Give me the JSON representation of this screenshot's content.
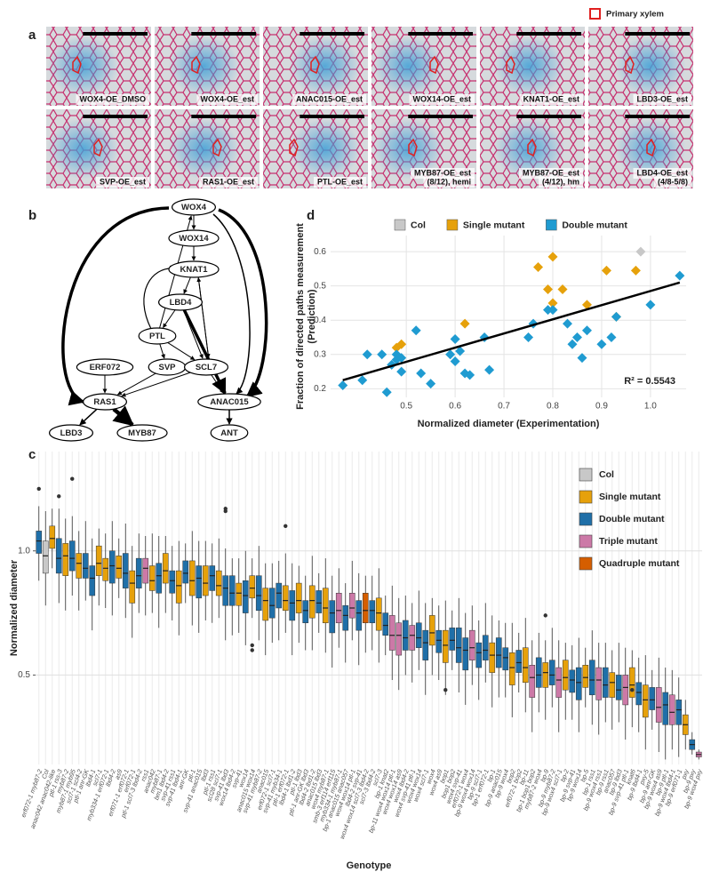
{
  "panel_a": {
    "label": "a",
    "legend": "Primary xylem",
    "images": [
      [
        "WOX4-OE_DMSO"
      ],
      [
        "WOX4-OE_est"
      ],
      [
        "ANAC015-OE_est"
      ],
      [
        "WOX14-OE_est"
      ],
      [
        "KNAT1-OE_est"
      ],
      [
        "LBD3-OE_est"
      ],
      [
        "SVP-OE_est"
      ],
      [
        "RAS1-OE_est"
      ],
      [
        "PTL-OE_est"
      ],
      [
        "MYB87-OE_est",
        "(8/12), hemi"
      ],
      [
        "MYB87-OE_est",
        "(4/12), hm"
      ],
      [
        "LBD4-OE_est",
        "(4/8-5/8)"
      ]
    ]
  },
  "network": {
    "label": "b",
    "nodes": [
      "WOX4",
      "WOX14",
      "KNAT1",
      "LBD4",
      "PTL",
      "SVP",
      "SCL7",
      "ERF072",
      "RAS1",
      "ANAC015",
      "LBD3",
      "MYB87",
      "ANT"
    ]
  },
  "chart_data": [
    {
      "type": "scatter",
      "panel": "d",
      "xlabel": "Normalized diameter (Experimentation)",
      "ylabel": [
        "Fraction of directed paths measurement",
        "(Prediction)"
      ],
      "xlim": [
        0.345,
        1.073
      ],
      "ylim": [
        0.175,
        0.647
      ],
      "xticks": [
        0.5,
        0.6,
        0.7,
        0.8,
        0.9,
        {
          "value": 1,
          "label": "1.0"
        }
      ],
      "yticks": [
        0.2,
        0.3,
        0.4,
        0.5,
        0.6
      ],
      "grid": true,
      "legend": "top",
      "series": [
        {
          "name": "Col",
          "color": "#c8c8c8",
          "x": [
            0.98
          ],
          "values": [
            0.6
          ]
        },
        {
          "name": "Single mutant",
          "color": "#e6a10b",
          "x": [
            0.77,
            0.8,
            0.91,
            0.97,
            0.79,
            0.82,
            0.8,
            0.87,
            0.93,
            0.62,
            0.49,
            0.48
          ],
          "values": [
            0.555,
            0.585,
            0.545,
            0.545,
            0.49,
            0.49,
            0.45,
            0.445,
            0.41,
            0.39,
            0.33,
            0.32
          ]
        },
        {
          "name": "Double mutant",
          "color": "#1f9bd1",
          "x": [
            0.37,
            0.41,
            0.42,
            0.45,
            0.46,
            0.47,
            0.48,
            0.48,
            0.49,
            0.49,
            0.52,
            0.53,
            0.55,
            0.59,
            0.6,
            0.6,
            0.61,
            0.62,
            0.63,
            0.66,
            0.67,
            0.75,
            0.76,
            0.79,
            0.8,
            0.83,
            0.84,
            0.85,
            0.86,
            0.87,
            0.9,
            0.92,
            0.93,
            1.0,
            1.06
          ],
          "values": [
            0.21,
            0.225,
            0.3,
            0.3,
            0.19,
            0.27,
            0.3,
            0.285,
            0.25,
            0.29,
            0.37,
            0.245,
            0.215,
            0.3,
            0.345,
            0.28,
            0.31,
            0.245,
            0.24,
            0.35,
            0.255,
            0.35,
            0.39,
            0.43,
            0.43,
            0.39,
            0.33,
            0.35,
            0.29,
            0.37,
            0.33,
            0.35,
            0.41,
            0.445,
            0.53
          ]
        }
      ],
      "fit": {
        "x": [
          0.37,
          1.06
        ],
        "y": [
          0.225,
          0.51
        ]
      },
      "annotation": "R² = 0.5543"
    },
    {
      "type": "box",
      "panel": "c",
      "xlabel": "Genotype",
      "ylabel": "Normalized diameter",
      "ylim": [
        0.14,
        1.4
      ],
      "yticks": [
        0.5,
        {
          "value": 1,
          "label": "1.0"
        }
      ],
      "grid": true,
      "legend_position": "top-right",
      "legend": [
        {
          "name": "Col",
          "color": "#c8c8c8"
        },
        {
          "name": "Single mutant",
          "color": "#e6a10b"
        },
        {
          "name": "Double mutant",
          "color": "#1f6fa8"
        },
        {
          "name": "Triple mutant",
          "color": "#cc79a7"
        },
        {
          "name": "Quadruple mutant",
          "color": "#d55e00"
        }
      ],
      "categories": [
        "erf072-1 myb87-2",
        "Col",
        "anac042 anac042-like",
        "ptl-1 rss-3",
        "myb87-2",
        "myb87-1 myb95",
        "scl7-1 scl4-2",
        "ptl-1 anr-GK",
        "lbd4-1",
        "scl7-1",
        "myb334-1 erf072-1",
        "lbd4-2",
        "as9",
        "erf071-1 erf072-1",
        "erf072-1",
        "ptl-1 scl7-3 lbd4-2",
        "rss1",
        "anac042",
        "myb87-1",
        "bm1 lbd4-2",
        "svp-41 rss1",
        "svp-41 lbd4-1",
        "anr-GK",
        "ptl-1",
        "svp-41 anac015",
        "lbd3",
        "ptl-1 rss1",
        "scl28 scl7-1",
        "svp-41 lbd3",
        "wox14 lbd4-2",
        "svp-41",
        "wox14",
        "anac015 wox14",
        "svp-41 myb87-2",
        "anac015",
        "erf072-1 scl7-1",
        "svp-41 myb34-1",
        "ptl-1 erf072-1",
        "lbd4-1 lbd1-2",
        "ptl-1 lbd3",
        "ptl-1 anr-GK lbd3",
        "lbd4-2 lbd1-2",
        "anac015 lbd3",
        "wox4 myb87-1",
        "smb-3 erf114 erf115",
        "myb334-1 myb87-1",
        "bp-1 anac015 anac057",
        "wox4 wox14 ptl-1",
        "lbd4-2 svp-41",
        "wox4 wox14 scl7-3 lbd4-2",
        "scl7-3 lbd4-2",
        "scl7-3",
        "bp-1 knat2",
        "bp-11 wox4 wox14 ptl-1",
        "wox4 wox14 as9",
        "wox4 lbd4-2",
        "wox4 svp-41 ptl-1",
        "wox4 wox14",
        "wox4 scl7-1",
        "wox4",
        "wox4 as9",
        "bop1",
        "bop1 bop2",
        "wox4 svp-41",
        "erf072-1 wox4",
        "bp-9 wox4 wox14",
        "bp-9 scl7-1",
        "bp-1 erf072-1",
        "bp-1",
        "bp-9 anac015",
        "bp-9 wox4",
        "bop2",
        "erf072-1 bop2",
        "bp-11",
        "bp-1 bop1 bop2",
        "myb87-2 wox4",
        "bp-9",
        "bp-9 myb87-2",
        "bp-9 wox4 scl7-1",
        "bp-2",
        "bp-9 svp-41",
        "bp-9 wox14",
        "bp-5",
        "bp-1 rss1",
        "bp-9 wox4 rss1",
        "bp-9 rss1",
        "anac057",
        "bp-9 lbd3",
        "bp-9 svp-41 ptl-1",
        "knat6",
        "bp-9 lbd4-1",
        "pxy-5",
        "bp-9 anr-GK",
        "bp-9 wox4 as9",
        "bp-9 ptl-1",
        "bp-9 wox4 lbd4-1",
        "bp-9 erf071-1",
        "pxy",
        "bp-9 pxy",
        "bp-9 wox4 pxy"
      ],
      "colors": [
        "#1f6fa8",
        "#c8c8c8",
        "#e6a10b",
        "#1f6fa8",
        "#e6a10b",
        "#1f6fa8",
        "#e6a10b",
        "#1f6fa8",
        "#1f6fa8",
        "#e6a10b",
        "#e6a10b",
        "#1f6fa8",
        "#e6a10b",
        "#1f6fa8",
        "#e6a10b",
        "#1f6fa8",
        "#cc79a7",
        "#e6a10b",
        "#1f6fa8",
        "#e6a10b",
        "#1f6fa8",
        "#e6a10b",
        "#1f6fa8",
        "#e6a10b",
        "#1f6fa8",
        "#e6a10b",
        "#1f6fa8",
        "#e6a10b",
        "#1f6fa8",
        "#1f6fa8",
        "#e6a10b",
        "#1f6fa8",
        "#e6a10b",
        "#1f6fa8",
        "#e6a10b",
        "#1f6fa8",
        "#1f6fa8",
        "#e6a10b",
        "#1f6fa8",
        "#e6a10b",
        "#1f6fa8",
        "#e6a10b",
        "#1f6fa8",
        "#e6a10b",
        "#1f6fa8",
        "#cc79a7",
        "#1f6fa8",
        "#cc79a7",
        "#1f6fa8",
        "#d55e00",
        "#1f6fa8",
        "#e6a10b",
        "#1f6fa8",
        "#cc79a7",
        "#cc79a7",
        "#1f6fa8",
        "#cc79a7",
        "#1f6fa8",
        "#1f6fa8",
        "#e6a10b",
        "#1f6fa8",
        "#e6a10b",
        "#1f6fa8",
        "#1f6fa8",
        "#1f6fa8",
        "#cc79a7",
        "#1f6fa8",
        "#1f6fa8",
        "#e6a10b",
        "#1f6fa8",
        "#1f6fa8",
        "#e6a10b",
        "#1f6fa8",
        "#e6a10b",
        "#cc79a7",
        "#1f6fa8",
        "#e6a10b",
        "#1f6fa8",
        "#cc79a7",
        "#e6a10b",
        "#1f6fa8",
        "#1f6fa8",
        "#e6a10b",
        "#1f6fa8",
        "#cc79a7",
        "#1f6fa8",
        "#e6a10b",
        "#1f6fa8",
        "#cc79a7",
        "#e6a10b",
        "#1f6fa8",
        "#e6a10b",
        "#1f6fa8",
        "#cc79a7",
        "#1f6fa8",
        "#cc79a7",
        "#1f6fa8",
        "#e6a10b",
        "#1f6fa8",
        "#cc79a7"
      ],
      "min": [
        0.88,
        0.78,
        0.93,
        0.79,
        0.76,
        0.82,
        0.76,
        0.8,
        0.68,
        0.78,
        0.77,
        0.74,
        0.81,
        0.73,
        0.65,
        0.75,
        0.74,
        0.75,
        0.69,
        0.75,
        0.72,
        0.66,
        0.79,
        0.7,
        0.67,
        0.72,
        0.71,
        0.73,
        0.64,
        0.66,
        0.67,
        0.62,
        0.73,
        0.64,
        0.58,
        0.63,
        0.64,
        0.67,
        0.58,
        0.63,
        0.6,
        0.6,
        0.67,
        0.59,
        0.53,
        0.61,
        0.55,
        0.64,
        0.54,
        0.59,
        0.6,
        0.55,
        0.58,
        0.48,
        0.44,
        0.5,
        0.47,
        0.52,
        0.42,
        0.5,
        0.48,
        0.42,
        0.52,
        0.43,
        0.38,
        0.46,
        0.4,
        0.47,
        0.37,
        0.41,
        0.41,
        0.33,
        0.43,
        0.35,
        0.27,
        0.35,
        0.32,
        0.37,
        0.27,
        0.32,
        0.32,
        0.27,
        0.37,
        0.3,
        0.26,
        0.31,
        0.28,
        0.31,
        0.24,
        0.29,
        0.27,
        0.2,
        0.28,
        0.19,
        0.16,
        0.2,
        0.17,
        0.2,
        0.18,
        0.16
      ],
      "q1": [
        0.99,
        0.91,
        1.01,
        0.91,
        0.9,
        0.92,
        0.89,
        0.89,
        0.82,
        0.9,
        0.88,
        0.87,
        0.89,
        0.85,
        0.79,
        0.85,
        0.87,
        0.84,
        0.83,
        0.87,
        0.83,
        0.79,
        0.87,
        0.82,
        0.81,
        0.82,
        0.84,
        0.82,
        0.78,
        0.78,
        0.78,
        0.75,
        0.81,
        0.76,
        0.72,
        0.73,
        0.77,
        0.76,
        0.72,
        0.75,
        0.71,
        0.73,
        0.75,
        0.71,
        0.67,
        0.71,
        0.68,
        0.73,
        0.68,
        0.71,
        0.71,
        0.68,
        0.66,
        0.6,
        0.58,
        0.6,
        0.6,
        0.61,
        0.56,
        0.62,
        0.59,
        0.55,
        0.6,
        0.55,
        0.52,
        0.56,
        0.53,
        0.56,
        0.51,
        0.53,
        0.52,
        0.46,
        0.51,
        0.47,
        0.41,
        0.45,
        0.45,
        0.46,
        0.41,
        0.44,
        0.43,
        0.4,
        0.45,
        0.42,
        0.4,
        0.41,
        0.41,
        0.4,
        0.38,
        0.41,
        0.38,
        0.33,
        0.36,
        0.31,
        0.3,
        0.3,
        0.3,
        0.26,
        0.2,
        0.17
      ],
      "median": [
        1.04,
        0.98,
        1.05,
        0.97,
        0.98,
        0.97,
        0.95,
        0.93,
        0.89,
        0.95,
        0.93,
        0.94,
        0.93,
        0.91,
        0.87,
        0.9,
        0.93,
        0.88,
        0.9,
        0.92,
        0.88,
        0.86,
        0.91,
        0.88,
        0.89,
        0.87,
        0.9,
        0.86,
        0.85,
        0.83,
        0.83,
        0.82,
        0.85,
        0.82,
        0.8,
        0.78,
        0.83,
        0.8,
        0.79,
        0.8,
        0.76,
        0.8,
        0.79,
        0.77,
        0.75,
        0.76,
        0.74,
        0.77,
        0.75,
        0.76,
        0.76,
        0.75,
        0.7,
        0.66,
        0.66,
        0.65,
        0.66,
        0.65,
        0.63,
        0.67,
        0.64,
        0.62,
        0.64,
        0.61,
        0.6,
        0.61,
        0.59,
        0.6,
        0.58,
        0.58,
        0.57,
        0.53,
        0.55,
        0.53,
        0.49,
        0.5,
        0.51,
        0.5,
        0.48,
        0.49,
        0.48,
        0.47,
        0.49,
        0.48,
        0.48,
        0.46,
        0.47,
        0.44,
        0.45,
        0.46,
        0.43,
        0.4,
        0.4,
        0.37,
        0.38,
        0.35,
        0.36,
        0.3,
        0.22,
        0.18
      ],
      "q3": [
        1.08,
        1.04,
        1.1,
        1.05,
        1.03,
        1.04,
        0.99,
        0.99,
        0.94,
        1.02,
        0.97,
        1.0,
        0.98,
        0.99,
        0.92,
        0.97,
        0.97,
        0.94,
        0.95,
        0.99,
        0.92,
        0.92,
        0.96,
        0.96,
        0.94,
        0.94,
        0.94,
        0.92,
        0.9,
        0.9,
        0.87,
        0.88,
        0.9,
        0.9,
        0.85,
        0.85,
        0.87,
        0.86,
        0.84,
        0.87,
        0.8,
        0.86,
        0.84,
        0.85,
        0.8,
        0.83,
        0.78,
        0.83,
        0.8,
        0.83,
        0.8,
        0.81,
        0.75,
        0.74,
        0.71,
        0.72,
        0.7,
        0.71,
        0.68,
        0.74,
        0.68,
        0.68,
        0.69,
        0.69,
        0.65,
        0.68,
        0.63,
        0.66,
        0.63,
        0.65,
        0.61,
        0.59,
        0.6,
        0.61,
        0.54,
        0.57,
        0.55,
        0.56,
        0.53,
        0.56,
        0.52,
        0.53,
        0.54,
        0.56,
        0.53,
        0.53,
        0.51,
        0.5,
        0.5,
        0.53,
        0.47,
        0.46,
        0.45,
        0.45,
        0.43,
        0.42,
        0.4,
        0.34,
        0.24,
        0.19
      ],
      "max": [
        1.18,
        1.16,
        1.17,
        1.17,
        1.13,
        1.14,
        1.08,
        1.12,
        1.05,
        1.09,
        1.07,
        1.12,
        1.05,
        1.11,
        1.02,
        1.07,
        1.06,
        1.07,
        1.06,
        1.06,
        1.02,
        1.04,
        1.03,
        1.08,
        1.04,
        1.04,
        1.03,
        1.05,
        1.01,
        0.97,
        0.97,
        1.0,
        0.97,
        1.02,
        0.95,
        0.95,
        0.96,
        0.99,
        0.95,
        0.94,
        0.9,
        0.98,
        0.91,
        0.97,
        0.9,
        0.93,
        0.87,
        0.96,
        0.91,
        0.9,
        0.9,
        0.93,
        0.82,
        0.86,
        0.81,
        0.82,
        0.79,
        0.84,
        0.79,
        0.81,
        0.78,
        0.8,
        0.76,
        0.81,
        0.75,
        0.78,
        0.72,
        0.79,
        0.74,
        0.72,
        0.71,
        0.71,
        0.67,
        0.73,
        0.64,
        0.67,
        0.64,
        0.69,
        0.64,
        0.63,
        0.62,
        0.65,
        0.61,
        0.68,
        0.63,
        0.63,
        0.6,
        0.63,
        0.61,
        0.6,
        0.57,
        0.58,
        0.52,
        0.57,
        0.53,
        0.52,
        0.49,
        0.4,
        0.27,
        0.2
      ],
      "outliers": [
        [
          1.25
        ],
        [],
        [],
        [
          1.22
        ],
        [],
        [
          1.29
        ],
        [],
        [],
        [],
        [],
        [],
        [],
        [],
        [],
        [],
        [],
        [],
        [],
        [],
        [],
        [],
        [],
        [],
        [],
        [],
        [],
        [],
        [],
        [
          1.16,
          1.17
        ],
        [],
        [],
        [],
        [
          0.62,
          0.6
        ],
        [],
        [],
        [],
        [],
        [
          1.1
        ],
        [],
        [],
        [],
        [],
        [],
        [],
        [],
        [],
        [],
        [],
        [],
        [],
        [],
        [],
        [],
        [],
        [],
        [],
        [],
        [],
        [],
        [],
        [],
        [
          0.44
        ],
        [],
        [],
        [],
        [],
        [],
        [],
        [],
        [],
        [],
        [],
        [],
        [],
        [],
        [],
        [
          0.74
        ],
        [],
        [],
        [],
        [],
        [],
        [],
        [],
        [],
        [],
        [],
        [],
        [],
        [
          0.44
        ],
        [],
        [],
        [],
        [],
        [],
        [],
        [],
        [],
        [],
        []
      ]
    }
  ]
}
